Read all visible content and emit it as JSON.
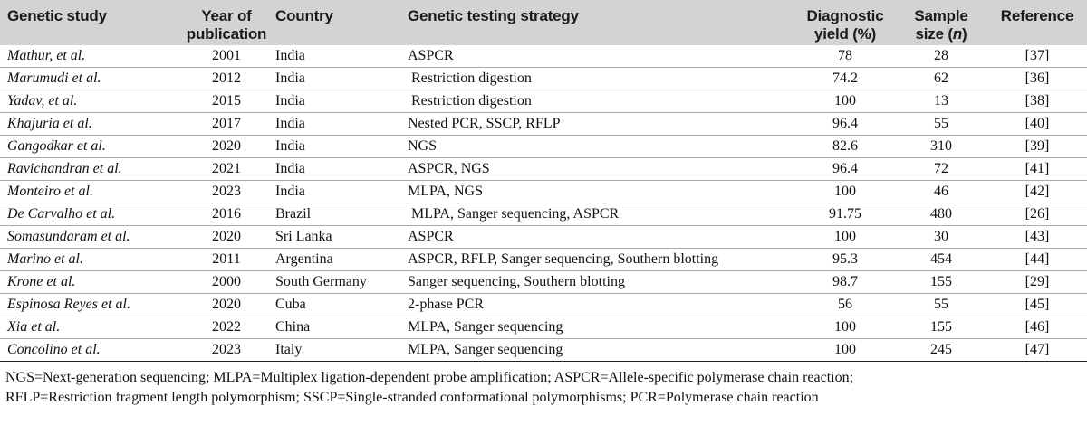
{
  "headers": {
    "study": "Genetic study",
    "year_1": "Year of",
    "year_2": "publication",
    "country": "Country",
    "strategy": "Genetic testing strategy",
    "yield_1": "Diagnostic",
    "yield_2": "yield (%)",
    "sample_1": "Sample",
    "sample_2": "size (",
    "sample_n": "n",
    "sample_3": ")",
    "reference": "Reference"
  },
  "rows": [
    {
      "study": "Mathur, et al.",
      "year": "2001",
      "country": "India",
      "strategy": "ASPCR",
      "yield": "78",
      "size": "28",
      "ref": "[37]"
    },
    {
      "study": "Marumudi et al.",
      "year": "2012",
      "country": "India",
      "strategy": " Restriction digestion",
      "yield": "74.2",
      "size": "62",
      "ref": "[36]"
    },
    {
      "study": "Yadav, et al.",
      "year": "2015",
      "country": "India",
      "strategy": " Restriction digestion",
      "yield": "100",
      "size": "13",
      "ref": "[38]"
    },
    {
      "study": "Khajuria et al.",
      "year": "2017",
      "country": "India",
      "strategy": "Nested PCR, SSCP, RFLP",
      "yield": "96.4",
      "size": "55",
      "ref": "[40]"
    },
    {
      "study": "Gangodkar et al.",
      "year": "2020",
      "country": "India",
      "strategy": "NGS",
      "yield": "82.6",
      "size": "310",
      "ref": "[39]"
    },
    {
      "study": "Ravichandran et al.",
      "year": "2021",
      "country": "India",
      "strategy": "ASPCR, NGS",
      "yield": "96.4",
      "size": "72",
      "ref": "[41]"
    },
    {
      "study": "Monteiro et al.",
      "year": "2023",
      "country": "India",
      "strategy": "MLPA, NGS",
      "yield": "100",
      "size": "46",
      "ref": "[42]"
    },
    {
      "study": "De Carvalho et al.",
      "year": "2016",
      "country": "Brazil",
      "strategy": " MLPA, Sanger sequencing, ASPCR",
      "yield": "91.75",
      "size": "480",
      "ref": "[26]"
    },
    {
      "study": "Somasundaram et al.",
      "year": "2020",
      "country": "Sri Lanka",
      "strategy": "ASPCR",
      "yield": "100",
      "size": "30",
      "ref": "[43]"
    },
    {
      "study": "Marino et al.",
      "year": "2011",
      "country": "Argentina",
      "strategy": "ASPCR, RFLP, Sanger sequencing, Southern blotting",
      "yield": "95.3",
      "size": "454",
      "ref": "[44]"
    },
    {
      "study": "Krone et al.",
      "year": "2000",
      "country": "South Germany",
      "strategy": "Sanger sequencing, Southern blotting",
      "yield": "98.7",
      "size": "155",
      "ref": "[29]"
    },
    {
      "study": "Espinosa Reyes et al.",
      "year": "2020",
      "country": "Cuba",
      "strategy": "2-phase PCR",
      "yield": "56",
      "size": "55",
      "ref": "[45]"
    },
    {
      "study": "Xia et al.",
      "year": "2022",
      "country": "China",
      "strategy": "MLPA, Sanger sequencing",
      "yield": "100",
      "size": "155",
      "ref": "[46]"
    },
    {
      "study": "Concolino et al.",
      "year": "2023",
      "country": "Italy",
      "strategy": "MLPA, Sanger sequencing",
      "yield": "100",
      "size": "245",
      "ref": "[47]"
    }
  ],
  "footnote": {
    "line1": "NGS=Next-generation sequencing; MLPA=Multiplex ligation-dependent probe amplification; ASPCR=Allele-specific polymerase chain reaction;",
    "line2": "RFLP=Restriction fragment length polymorphism; SSCP=Single-stranded conformational polymorphisms; PCR=Polymerase chain reaction"
  }
}
